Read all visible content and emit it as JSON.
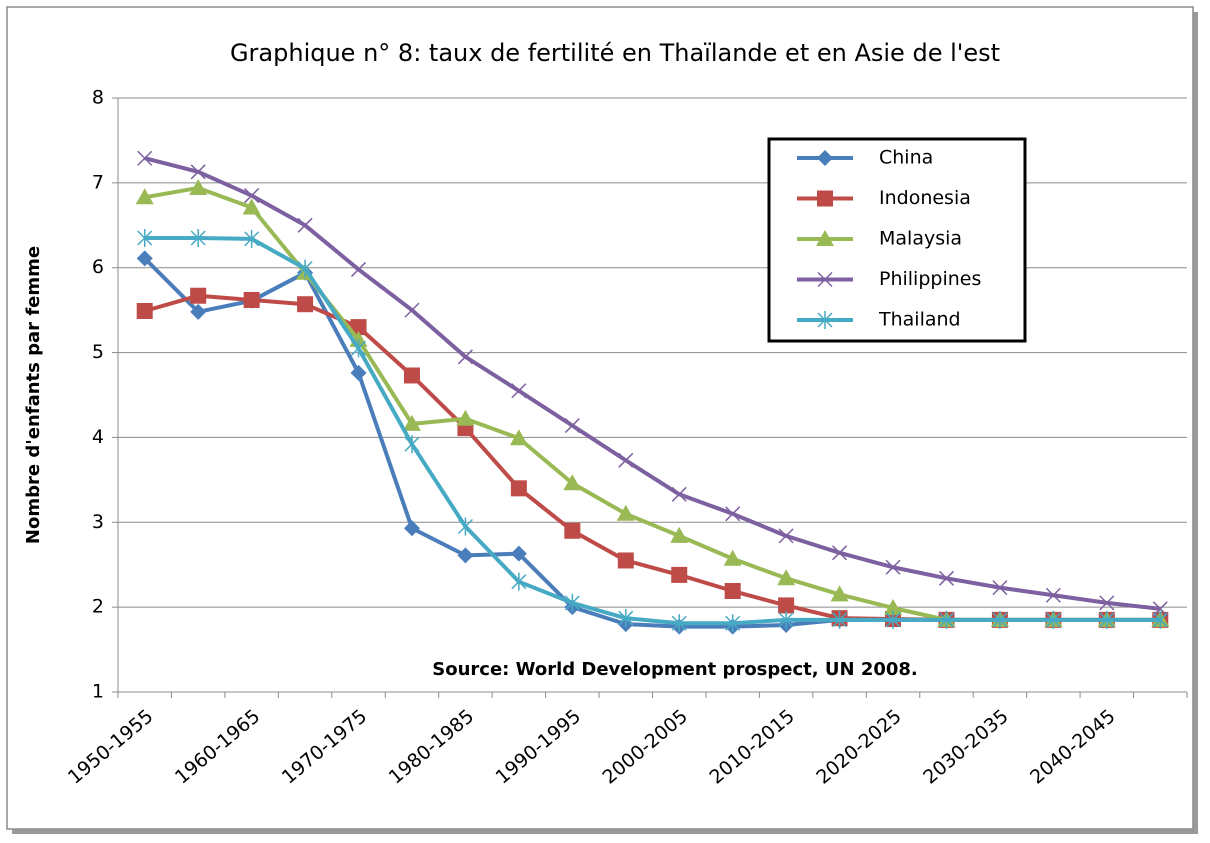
{
  "chart_data": {
    "type": "line",
    "title": "Graphique n° 8: taux de fertilité en Thaïlande et en Asie de l'est",
    "y_label": "Nombre d'enfants par femme",
    "annotation": "Source: World Development prospect, UN 2008.",
    "categories": [
      "1950-1955",
      null,
      "1960-1965",
      null,
      "1970-1975",
      null,
      "1980-1985",
      null,
      "1990-1995",
      null,
      "2000-2005",
      null,
      "2010-2015",
      null,
      "2020-2025",
      null,
      "2030-2035",
      null,
      "2040-2045",
      null
    ],
    "series": [
      {
        "name": "China",
        "color": "#4a7ebb",
        "marker": "diamond",
        "values": [
          6.11,
          5.48,
          5.61,
          5.94,
          4.76,
          2.93,
          2.61,
          2.63,
          2.0,
          1.8,
          1.77,
          1.77,
          1.79,
          1.85,
          1.85,
          1.85,
          1.85,
          1.85,
          1.85,
          1.85
        ]
      },
      {
        "name": "Indonesia",
        "color": "#be4b48",
        "marker": "square",
        "values": [
          5.49,
          5.67,
          5.62,
          5.57,
          5.3,
          4.73,
          4.11,
          3.4,
          2.9,
          2.55,
          2.38,
          2.19,
          2.02,
          1.87,
          1.86,
          1.85,
          1.85,
          1.85,
          1.85,
          1.85
        ]
      },
      {
        "name": "Malaysia",
        "color": "#98b954",
        "marker": "triangle",
        "values": [
          6.83,
          6.94,
          6.71,
          5.94,
          5.15,
          4.16,
          4.22,
          3.99,
          3.46,
          3.1,
          2.84,
          2.57,
          2.34,
          2.15,
          1.99,
          1.85,
          1.85,
          1.85,
          1.85,
          1.85
        ]
      },
      {
        "name": "Philippines",
        "color": "#7d60a0",
        "marker": "x",
        "values": [
          7.29,
          7.13,
          6.85,
          6.5,
          5.98,
          5.5,
          4.95,
          4.55,
          4.14,
          3.73,
          3.33,
          3.1,
          2.84,
          2.64,
          2.47,
          2.34,
          2.23,
          2.14,
          2.05,
          1.98
        ]
      },
      {
        "name": "Thailand",
        "color": "#46aac5",
        "marker": "star",
        "values": [
          6.35,
          6.35,
          6.34,
          5.99,
          5.05,
          3.92,
          2.95,
          2.3,
          2.05,
          1.87,
          1.81,
          1.81,
          1.85,
          1.85,
          1.85,
          1.85,
          1.85,
          1.85,
          1.85,
          1.85
        ]
      }
    ],
    "ylim": [
      1,
      8
    ],
    "yticks": [
      1,
      2,
      3,
      4,
      5,
      6,
      7,
      8
    ],
    "grid": true,
    "legend": "upper right"
  }
}
